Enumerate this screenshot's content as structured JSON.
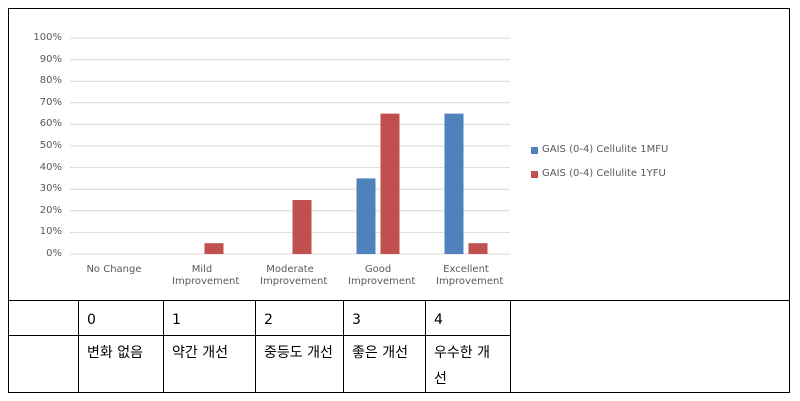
{
  "chart_data": {
    "type": "bar",
    "categories": [
      "No Change",
      "Mild Improvement",
      "Moderate Improvement",
      "Good Improvement",
      "Excellent Improvement"
    ],
    "series": [
      {
        "name": "GAIS (0-4) Cellulite 1MFU",
        "color": "#4f81bd",
        "values": [
          0,
          0,
          0,
          35,
          65
        ]
      },
      {
        "name": "GAIS (0-4) Cellulite 1YFU",
        "color": "#c0504d",
        "values": [
          0,
          5,
          25,
          65,
          5
        ]
      }
    ],
    "ylim": [
      0,
      100
    ],
    "yticks": [
      {
        "value": 0,
        "label": "0%"
      },
      {
        "value": 10,
        "label": "10%"
      },
      {
        "value": 20,
        "label": "20%"
      },
      {
        "value": 30,
        "label": "30%"
      },
      {
        "value": 40,
        "label": "40%"
      },
      {
        "value": 50,
        "label": "50%"
      },
      {
        "value": 60,
        "label": "60%"
      },
      {
        "value": 70,
        "label": "70%"
      },
      {
        "value": 80,
        "label": "80%"
      },
      {
        "value": 90,
        "label": "90%"
      },
      {
        "value": 100,
        "label": "100%"
      }
    ],
    "grid": true,
    "legend": "right"
  },
  "table": {
    "rows": [
      [
        "0",
        "1",
        "2",
        "3",
        "4"
      ],
      [
        "변화 없음",
        "약간 개선",
        "중등도 개선",
        "좋은 개선",
        "우수한 개선"
      ]
    ]
  }
}
